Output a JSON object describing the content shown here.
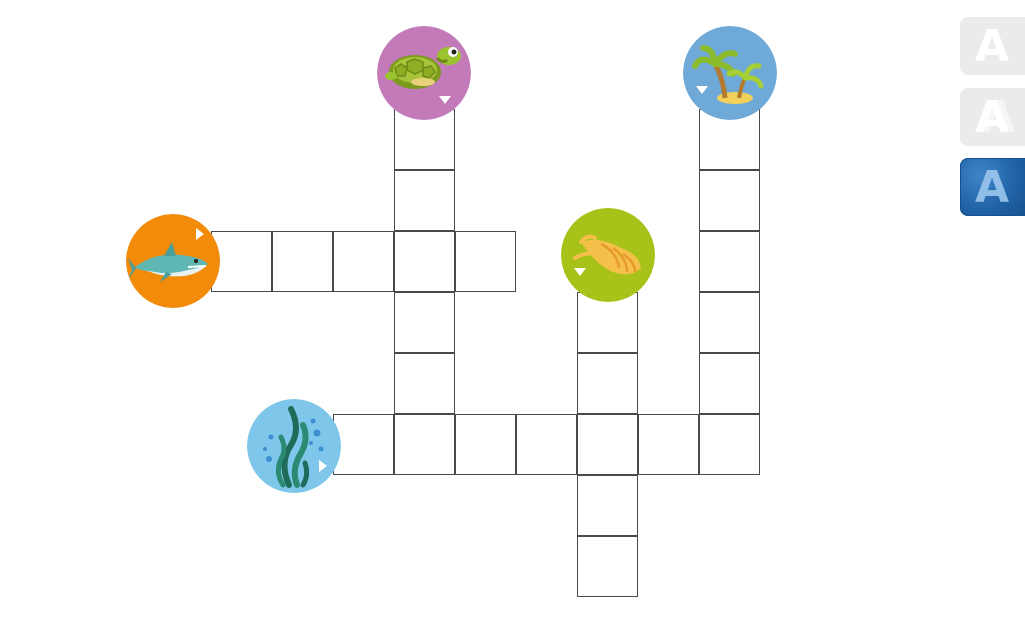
{
  "grid": {
    "cols": 16,
    "rows": 10,
    "cells": [
      [
        1,
        6
      ],
      [
        2,
        6
      ],
      [
        3,
        3
      ],
      [
        3,
        4
      ],
      [
        3,
        5
      ],
      [
        3,
        6
      ],
      [
        3,
        7
      ],
      [
        4,
        6
      ],
      [
        5,
        6
      ],
      [
        6,
        5
      ],
      [
        6,
        6
      ],
      [
        6,
        7
      ],
      [
        6,
        8
      ],
      [
        6,
        9
      ],
      [
        6,
        10
      ],
      [
        6,
        11
      ],
      [
        7,
        9
      ],
      [
        8,
        9
      ],
      [
        4,
        9
      ],
      [
        5,
        9
      ],
      [
        1,
        11
      ],
      [
        2,
        11
      ],
      [
        3,
        11
      ],
      [
        4,
        11
      ],
      [
        5,
        11
      ]
    ]
  },
  "clues": [
    {
      "id": "turtle",
      "icon": "turtle-icon",
      "bg": "#c27ab9",
      "direction": "down"
    },
    {
      "id": "palm",
      "icon": "palm-island-icon",
      "bg": "#6fa9d8",
      "direction": "down"
    },
    {
      "id": "shark",
      "icon": "shark-icon",
      "bg": "#f28a0a",
      "direction": "right"
    },
    {
      "id": "shell",
      "icon": "seashell-icon",
      "bg": "#a8c21a",
      "direction": "down"
    },
    {
      "id": "seaweed",
      "icon": "seaweed-icon",
      "bg": "#7ec6ea",
      "direction": "right"
    }
  ],
  "font_buttons": [
    {
      "id": "font-btn-1",
      "label": "A",
      "selected": false
    },
    {
      "id": "font-btn-2",
      "label": "A",
      "selected": false
    },
    {
      "id": "font-btn-3",
      "label": "A",
      "selected": true
    }
  ],
  "colors": {
    "grid_line": "#4a4a4a",
    "font_btn_inactive": "#ebebeb",
    "font_btn_active": "#1f62a6"
  }
}
